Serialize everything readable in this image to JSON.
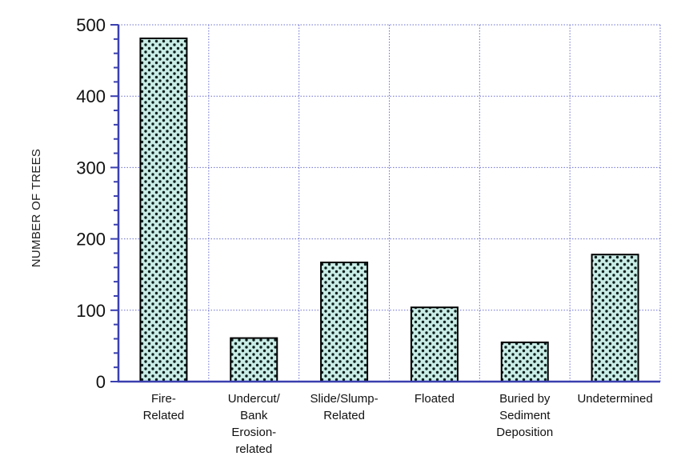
{
  "chart_data": {
    "type": "bar",
    "title": "",
    "xlabel": "",
    "ylabel": "NUMBER OF TREES",
    "ylim": [
      0,
      500
    ],
    "yticks": [
      0,
      100,
      200,
      300,
      400,
      500
    ],
    "grid": true,
    "categories": [
      "Fire-Related",
      "Undercut/Bank Erosion-related",
      "Slide/Slump-Related",
      "Floated",
      "Buried by Sediment Deposition",
      "Undetermined"
    ],
    "category_label_lines": [
      [
        "Fire-",
        "Related"
      ],
      [
        "Undercut/",
        "Bank",
        "Erosion-",
        "related"
      ],
      [
        "Slide/Slump-",
        "Related"
      ],
      [
        "Floated"
      ],
      [
        "Buried by",
        "Sediment",
        "Deposition"
      ],
      [
        "Undetermined"
      ]
    ],
    "values": [
      481,
      61,
      167,
      104,
      55,
      178
    ],
    "colors": {
      "axis": "#3a3fb0",
      "grid": "#6a6fd0",
      "bar_fill": "#c9ece6",
      "bar_dots": "#0c1f1c",
      "bar_outline": "#000000"
    }
  }
}
